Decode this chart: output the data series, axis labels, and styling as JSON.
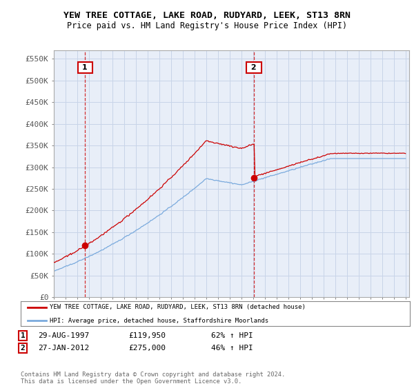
{
  "title": "YEW TREE COTTAGE, LAKE ROAD, RUDYARD, LEEK, ST13 8RN",
  "subtitle": "Price paid vs. HM Land Registry's House Price Index (HPI)",
  "ylabel_ticks": [
    "£0",
    "£50K",
    "£100K",
    "£150K",
    "£200K",
    "£250K",
    "£300K",
    "£350K",
    "£400K",
    "£450K",
    "£500K",
    "£550K"
  ],
  "ylim": [
    0,
    570000
  ],
  "yticks": [
    0,
    50000,
    100000,
    150000,
    200000,
    250000,
    300000,
    350000,
    400000,
    450000,
    500000,
    550000
  ],
  "hpi_color": "#7aaadd",
  "price_color": "#cc0000",
  "plot_bg_color": "#e8eef8",
  "sale1_date": 1997.66,
  "sale1_price": 119950,
  "sale1_label": "1",
  "sale2_date": 2012.07,
  "sale2_price": 275000,
  "sale2_label": "2",
  "legend_line1": "YEW TREE COTTAGE, LAKE ROAD, RUDYARD, LEEK, ST13 8RN (detached house)",
  "legend_line2": "HPI: Average price, detached house, Staffordshire Moorlands",
  "footnote": "Contains HM Land Registry data © Crown copyright and database right 2024.\nThis data is licensed under the Open Government Licence v3.0.",
  "background_color": "#ffffff",
  "grid_color": "#c8d4e8"
}
